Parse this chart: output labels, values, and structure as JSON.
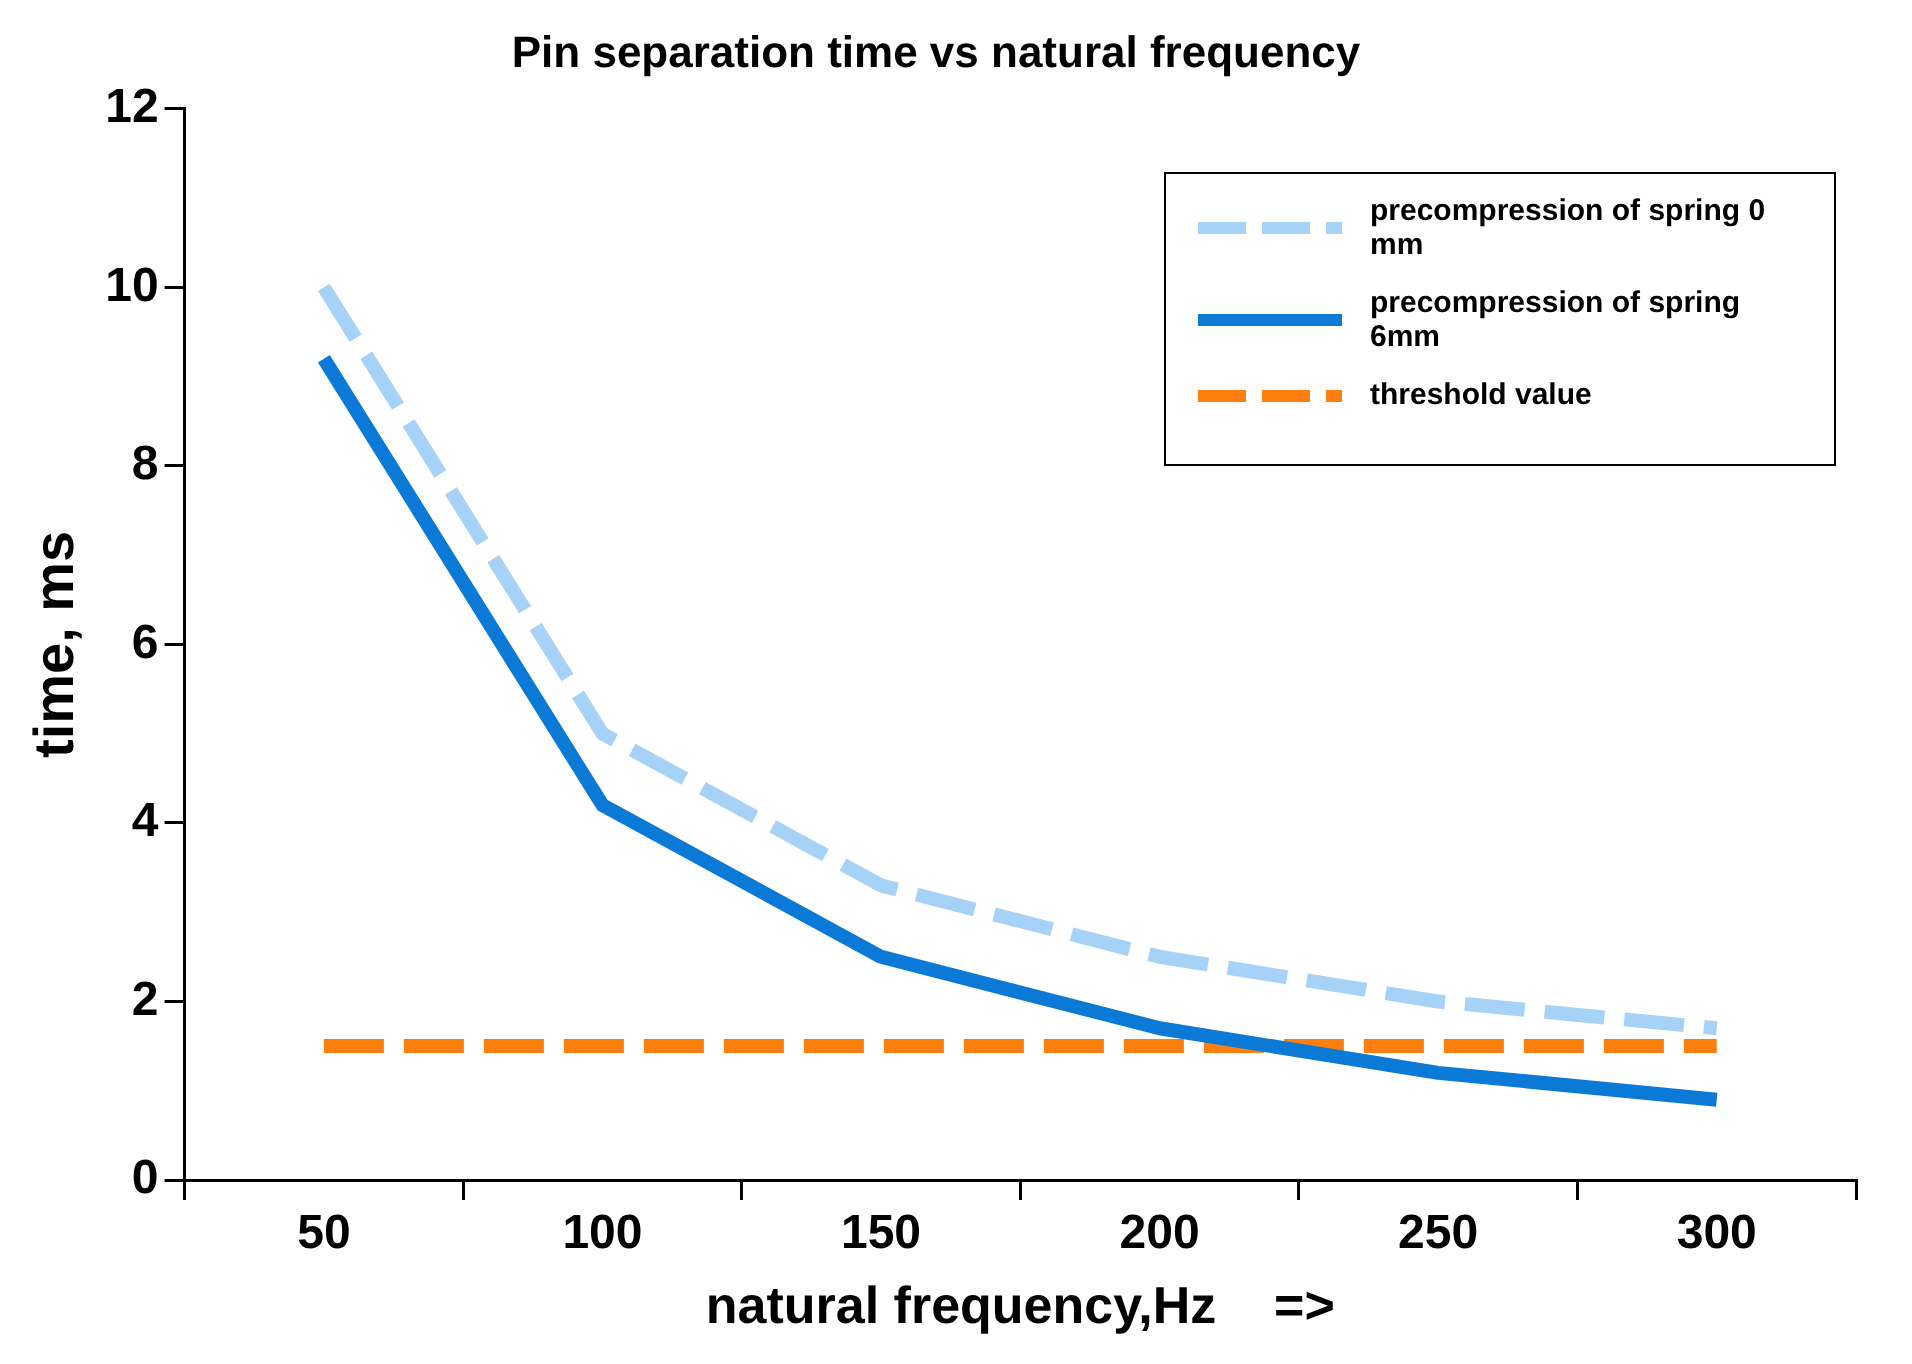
{
  "chart_data": {
    "type": "line",
    "title": "Pin separation time vs natural frequency",
    "xlabel": "natural frequency,Hz    =>",
    "ylabel": "time, ms",
    "categories": [
      "50",
      "100",
      "150",
      "200",
      "250",
      "300"
    ],
    "series": [
      {
        "name": "precompression of spring 0 mm",
        "color": "#a6d2f7",
        "line_style": "dashed",
        "values": [
          10,
          5,
          3.3,
          2.5,
          2.0,
          1.7
        ]
      },
      {
        "name": "precompression of spring 6mm",
        "color": "#0a7ad6",
        "line_style": "solid",
        "values": [
          9.2,
          4.2,
          2.5,
          1.7,
          1.2,
          0.9
        ]
      },
      {
        "name": "threshold value",
        "color": "#ff7f0e",
        "line_style": "dashed",
        "values": [
          1.5,
          1.5,
          1.5,
          1.5,
          1.5,
          1.5
        ]
      }
    ],
    "ylim": [
      0,
      12
    ],
    "yticks": [
      0,
      2,
      4,
      6,
      8,
      10,
      12
    ],
    "legend": "top right",
    "marker": "none"
  }
}
